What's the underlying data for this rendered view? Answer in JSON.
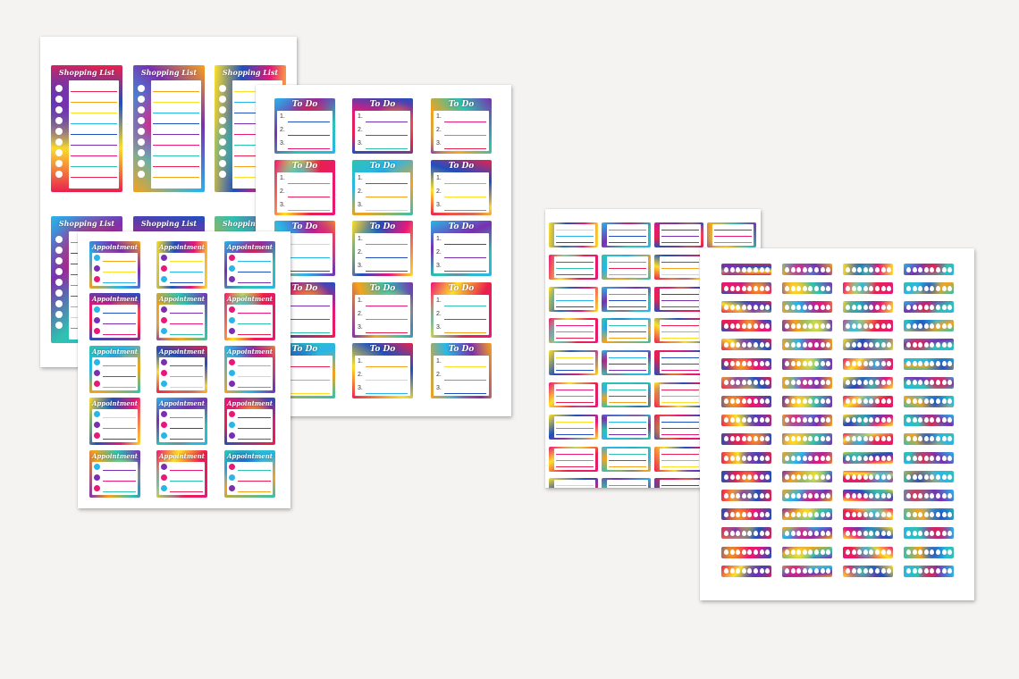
{
  "sheets": {
    "shopping": {
      "title_text": "Shopping List",
      "columns": 3,
      "rows": 2,
      "lines_per_sticker": 9
    },
    "todo": {
      "title_text": "To Do",
      "columns": 3,
      "rows": 5,
      "item_numbers": [
        "1.",
        "2.",
        "3."
      ]
    },
    "appointment": {
      "title_text": "Appointment",
      "columns": 3,
      "rows": 5,
      "field_icons": [
        "person-icon",
        "clock-icon",
        "location-pin-icon"
      ]
    },
    "labels": {
      "columns": 4,
      "rows": 9
    },
    "water": {
      "columns": 4,
      "rows": 17,
      "drops_per_sticker": 8,
      "icon": "water-drop-icon"
    }
  },
  "palette": [
    "#e8204e",
    "#f7a21b",
    "#fde02a",
    "#28b6e8",
    "#1f4fbf",
    "#7a2fb0",
    "#e8177a",
    "#2fc2b0"
  ]
}
